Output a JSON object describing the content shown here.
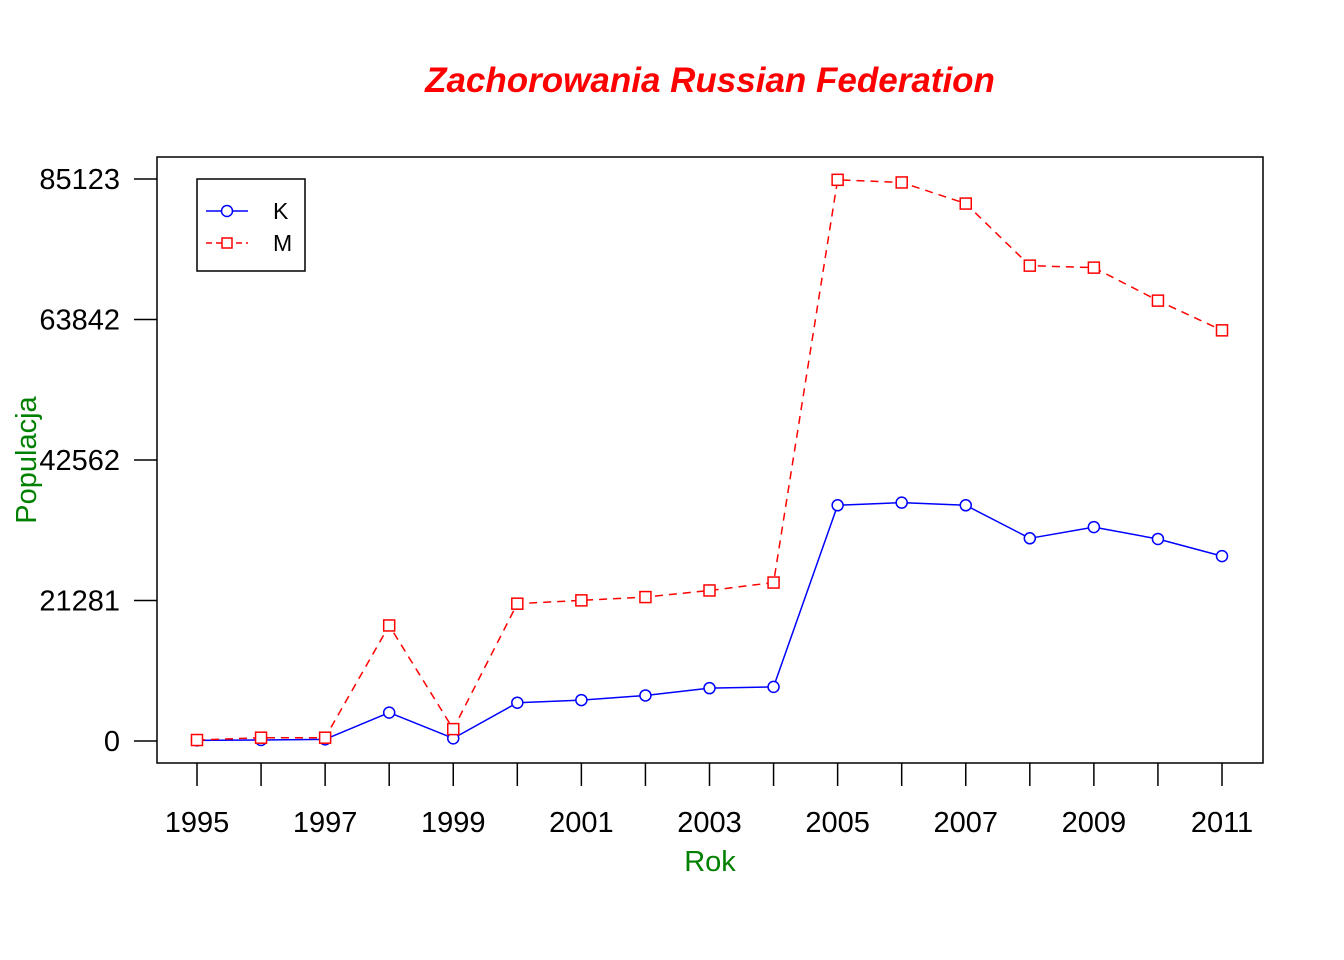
{
  "chart_data": {
    "type": "line",
    "title": "Zachorowania Russian Federation",
    "xlabel": "Rok",
    "ylabel": "Populacja",
    "x": [
      1995,
      1996,
      1997,
      1998,
      1999,
      2000,
      2001,
      2002,
      2003,
      2004,
      2005,
      2006,
      2007,
      2008,
      2009,
      2010,
      2011
    ],
    "x_tick_labels": [
      "1995",
      "1997",
      "1999",
      "2001",
      "2003",
      "2005",
      "2007",
      "2009",
      "2011"
    ],
    "y_tick_labels": [
      "0",
      "21281",
      "42562",
      "63842",
      "85123"
    ],
    "ylim": [
      0,
      85123
    ],
    "xlim": [
      1995,
      2011
    ],
    "grid": false,
    "legend_position": "top-left",
    "series": [
      {
        "name": "K",
        "color": "#0000ff",
        "line_style": "solid",
        "marker": "circle",
        "values": [
          100,
          150,
          250,
          4300,
          400,
          5800,
          6200,
          6900,
          8000,
          8200,
          35700,
          36100,
          35700,
          30700,
          32400,
          30600,
          28000
        ]
      },
      {
        "name": "M",
        "color": "#ff0000",
        "line_style": "dashed",
        "marker": "square",
        "values": [
          150,
          500,
          500,
          17500,
          1800,
          20800,
          21300,
          21800,
          22800,
          24000,
          85000,
          84600,
          81400,
          72000,
          71700,
          66700,
          62200
        ]
      }
    ],
    "colors": {
      "title": "#ff0000",
      "axis_labels": "#008000",
      "frame": "#000000"
    }
  }
}
